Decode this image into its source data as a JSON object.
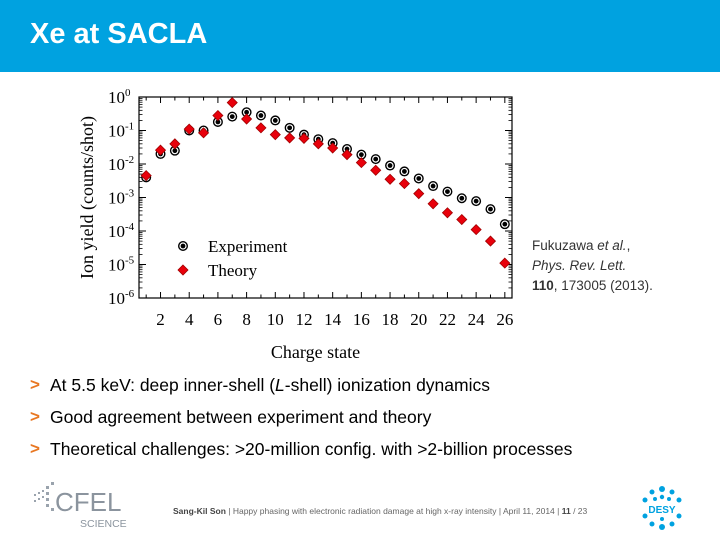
{
  "slide": {
    "title": "Xe at SACLA",
    "citation": {
      "authors": "Fukuzawa ",
      "etal": "et al.",
      "comma": ",",
      "journal": "Phys. Rev. Lett.",
      "volume": "110",
      "pages": ", 173005 (2013)."
    },
    "bullets": [
      {
        "marker": ">",
        "pre": "At 5.5 keV: deep inner-shell (",
        "italic": "L",
        "post": "-shell) ionization dynamics"
      },
      {
        "marker": ">",
        "pre": "Good agreement between experiment and theory",
        "italic": "",
        "post": ""
      },
      {
        "marker": ">",
        "pre": "Theoretical challenges: >20-million config. with >2-billion processes",
        "italic": "",
        "post": ""
      }
    ],
    "footer": {
      "author": "Sang-Kil Son",
      "sep1": " | ",
      "talk": "Happy phasing with electronic radiation damage at high x-ray intensity",
      "sep2": " | ",
      "date": "April 11, 2014",
      "sep3": " | ",
      "page": "11",
      "total": " / 23"
    },
    "logos": {
      "left_main": "CFEL",
      "left_sub": "SCIENCE",
      "right": "DESY"
    },
    "colors": {
      "title_bar": "#00a2e0",
      "bullet_marker": "#e87722",
      "experiment": "#000000",
      "theory": "#e8000b"
    }
  },
  "chart_data": {
    "type": "scatter",
    "title": "",
    "xlabel": "Charge state",
    "ylabel": "Ion yield (counts/shot)",
    "yscale": "log",
    "xlim": [
      0.5,
      26.5
    ],
    "ylim_exponent": [
      -6,
      0
    ],
    "x_ticks": [
      2,
      4,
      6,
      8,
      10,
      12,
      14,
      16,
      18,
      20,
      22,
      24,
      26
    ],
    "y_ticks": [
      {
        "base": "10",
        "exp": "0"
      },
      {
        "base": "10",
        "exp": "-1"
      },
      {
        "base": "10",
        "exp": "-2"
      },
      {
        "base": "10",
        "exp": "-3"
      },
      {
        "base": "10",
        "exp": "-4"
      },
      {
        "base": "10",
        "exp": "-5"
      },
      {
        "base": "10",
        "exp": "-6"
      }
    ],
    "legend_position": "lower-left",
    "series": [
      {
        "name": "Experiment",
        "marker": "circle",
        "x": [
          1,
          2,
          3,
          4,
          5,
          6,
          7,
          8,
          9,
          10,
          11,
          12,
          13,
          14,
          15,
          16,
          17,
          18,
          19,
          20,
          21,
          22,
          23,
          24,
          25,
          26
        ],
        "y": [
          0.004,
          0.02,
          0.025,
          0.1,
          0.1,
          0.18,
          0.26,
          0.35,
          0.28,
          0.2,
          0.12,
          0.075,
          0.055,
          0.042,
          0.028,
          0.019,
          0.014,
          0.009,
          0.006,
          0.0037,
          0.0022,
          0.0015,
          0.00095,
          0.00078,
          0.00045,
          0.00016
        ]
      },
      {
        "name": "Theory",
        "marker": "diamond",
        "x": [
          1,
          2,
          3,
          4,
          5,
          6,
          7,
          8,
          9,
          10,
          11,
          12,
          13,
          14,
          15,
          16,
          17,
          18,
          19,
          20,
          21,
          22,
          23,
          24,
          25,
          26
        ],
        "y": [
          0.0045,
          0.026,
          0.04,
          0.11,
          0.085,
          0.28,
          0.68,
          0.22,
          0.12,
          0.075,
          0.06,
          0.058,
          0.04,
          0.03,
          0.019,
          0.011,
          0.0065,
          0.0035,
          0.0026,
          0.0013,
          0.00065,
          0.00035,
          0.00022,
          0.00011,
          5e-05,
          1.1e-05
        ]
      }
    ]
  }
}
